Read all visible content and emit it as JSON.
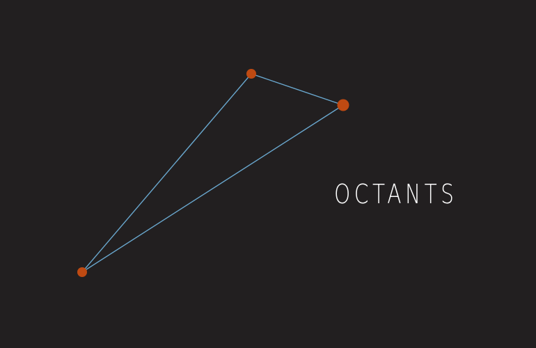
{
  "title": "OCTANTS",
  "colors": {
    "background": "#221f20",
    "line": "#6aa8cf",
    "star": "#bf4a12",
    "label": "#ffffff"
  },
  "stars": [
    {
      "name": "star-top",
      "magnitude": "small"
    },
    {
      "name": "star-right",
      "magnitude": "large"
    },
    {
      "name": "star-bottom-left",
      "magnitude": "small"
    }
  ]
}
